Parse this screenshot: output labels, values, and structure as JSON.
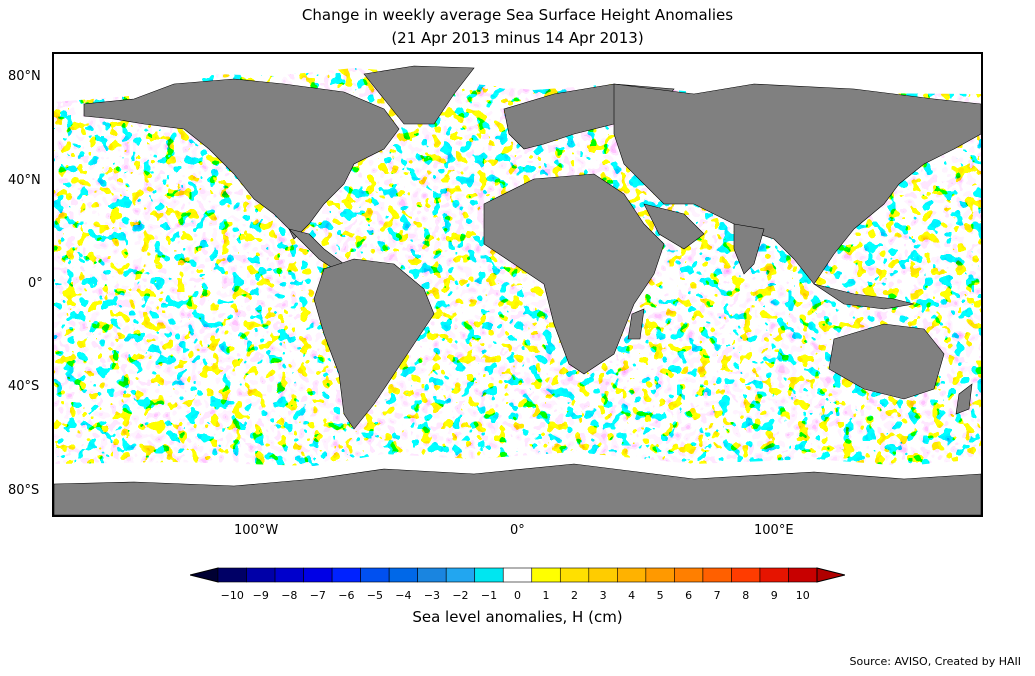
{
  "title_line1": "Change in weekly average Sea Surface Height Anomalies",
  "title_line2": "(21 Apr 2013 minus 14 Apr 2013)",
  "lat_labels": [
    "80°N",
    "40°N",
    "0°",
    "40°S",
    "80°S"
  ],
  "lon_labels": [
    "100°W",
    "0°",
    "100°E"
  ],
  "colorbar": {
    "ticks": [
      "−10",
      "−9",
      "−8",
      "−7",
      "−6",
      "−5",
      "−4",
      "−3",
      "−2",
      "−1",
      "0",
      "1",
      "2",
      "3",
      "4",
      "5",
      "6",
      "7",
      "8",
      "9",
      "10"
    ],
    "colors": [
      "#000066",
      "#0000a8",
      "#0000cc",
      "#0000e6",
      "#0022ff",
      "#0050f0",
      "#0068e8",
      "#1a85e0",
      "#22a6f0",
      "#00e6f0",
      "#ffffff",
      "#ffff00",
      "#ffe000",
      "#ffcc00",
      "#ffb200",
      "#ff9900",
      "#ff7f00",
      "#ff6000",
      "#ff3c00",
      "#e61400",
      "#c80000"
    ],
    "label": "Sea level anomalies, H (cm)"
  },
  "source": "Source: AVISO, Created by HAII",
  "colors": {
    "land": "#808080",
    "ice": "#ffffff",
    "ocean_blue": "#00ccff",
    "ocean_yellow": "#ffe600"
  }
}
